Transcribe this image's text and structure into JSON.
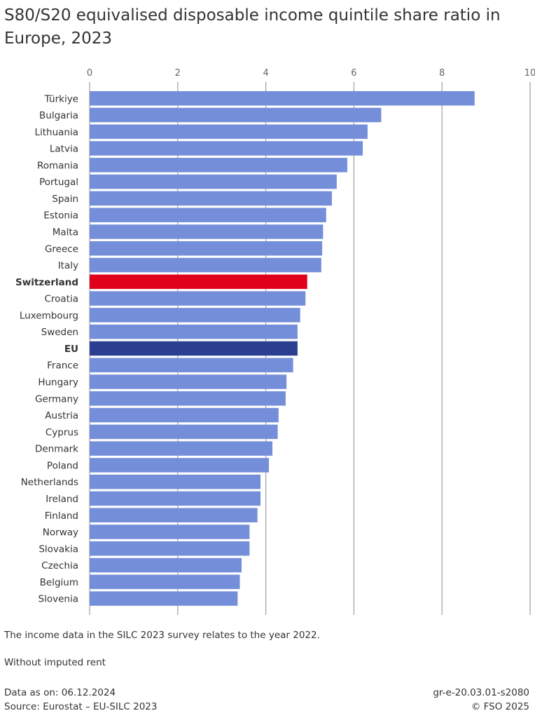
{
  "header": {
    "title": "S80/S20 equivalised disposable income quintile share ratio in Europe, 2023"
  },
  "chart_data": {
    "type": "bar",
    "orientation": "horizontal",
    "title": "S80/S20 equivalised disposable income quintile share ratio in Europe, 2023",
    "xlim": [
      0,
      10
    ],
    "xticks": [
      "0",
      "2",
      "4",
      "6",
      "8",
      "10"
    ],
    "grid": true,
    "categories": [
      "Türkiye",
      "Bulgaria",
      "Lithuania",
      "Latvia",
      "Romania",
      "Portugal",
      "Spain",
      "Estonia",
      "Malta",
      "Greece",
      "Italy",
      "Switzerland",
      "Croatia",
      "Luxembourg",
      "Sweden",
      "EU",
      "France",
      "Hungary",
      "Germany",
      "Austria",
      "Cyprus",
      "Denmark",
      "Poland",
      "Netherlands",
      "Ireland",
      "Finland",
      "Norway",
      "Slovakia",
      "Czechia",
      "Belgium",
      "Slovenia"
    ],
    "values": [
      8.74,
      6.62,
      6.31,
      6.2,
      5.85,
      5.61,
      5.5,
      5.37,
      5.3,
      5.28,
      5.26,
      4.94,
      4.9,
      4.78,
      4.72,
      4.72,
      4.62,
      4.47,
      4.45,
      4.29,
      4.27,
      4.15,
      4.07,
      3.88,
      3.88,
      3.81,
      3.63,
      3.63,
      3.45,
      3.41,
      3.36
    ],
    "highlight": {
      "Switzerland": "#e0001b",
      "EU": "#2a3f8f"
    },
    "bold_categories": [
      "Switzerland",
      "EU"
    ],
    "default_color": "#748ed9",
    "grid_color": "#9e9e9e"
  },
  "notes": {
    "note1": "The income data in the SILC 2023 survey relates to the year 2022.",
    "note2": "Without imputed rent"
  },
  "footer": {
    "data_as_on": "Data as on: 06.12.2024",
    "source": "Source: Eurostat – EU-SILC 2023",
    "code": "gr-e-20.03.01-s2080",
    "copyright": "© FSO 2025"
  }
}
